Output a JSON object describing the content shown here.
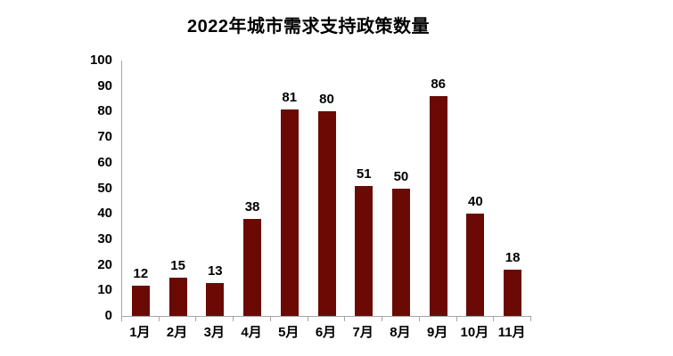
{
  "chart_data": {
    "type": "bar",
    "title": "2022年城市需求支持政策数量",
    "categories": [
      "1月",
      "2月",
      "3月",
      "4月",
      "5月",
      "6月",
      "7月",
      "8月",
      "9月",
      "10月",
      "11月"
    ],
    "values": [
      12,
      15,
      13,
      38,
      81,
      80,
      51,
      50,
      86,
      40,
      18
    ],
    "xlabel": "",
    "ylabel": "",
    "ylim": [
      0,
      100
    ],
    "yticks": [
      0,
      10,
      20,
      30,
      40,
      50,
      60,
      70,
      80,
      90,
      100
    ],
    "grid": false,
    "legend_position": "none",
    "data_labels": true,
    "colors": {
      "bar": "#6b0a05",
      "axis": "#a6a6a6",
      "text": "#000000",
      "background": "#ffffff"
    }
  }
}
